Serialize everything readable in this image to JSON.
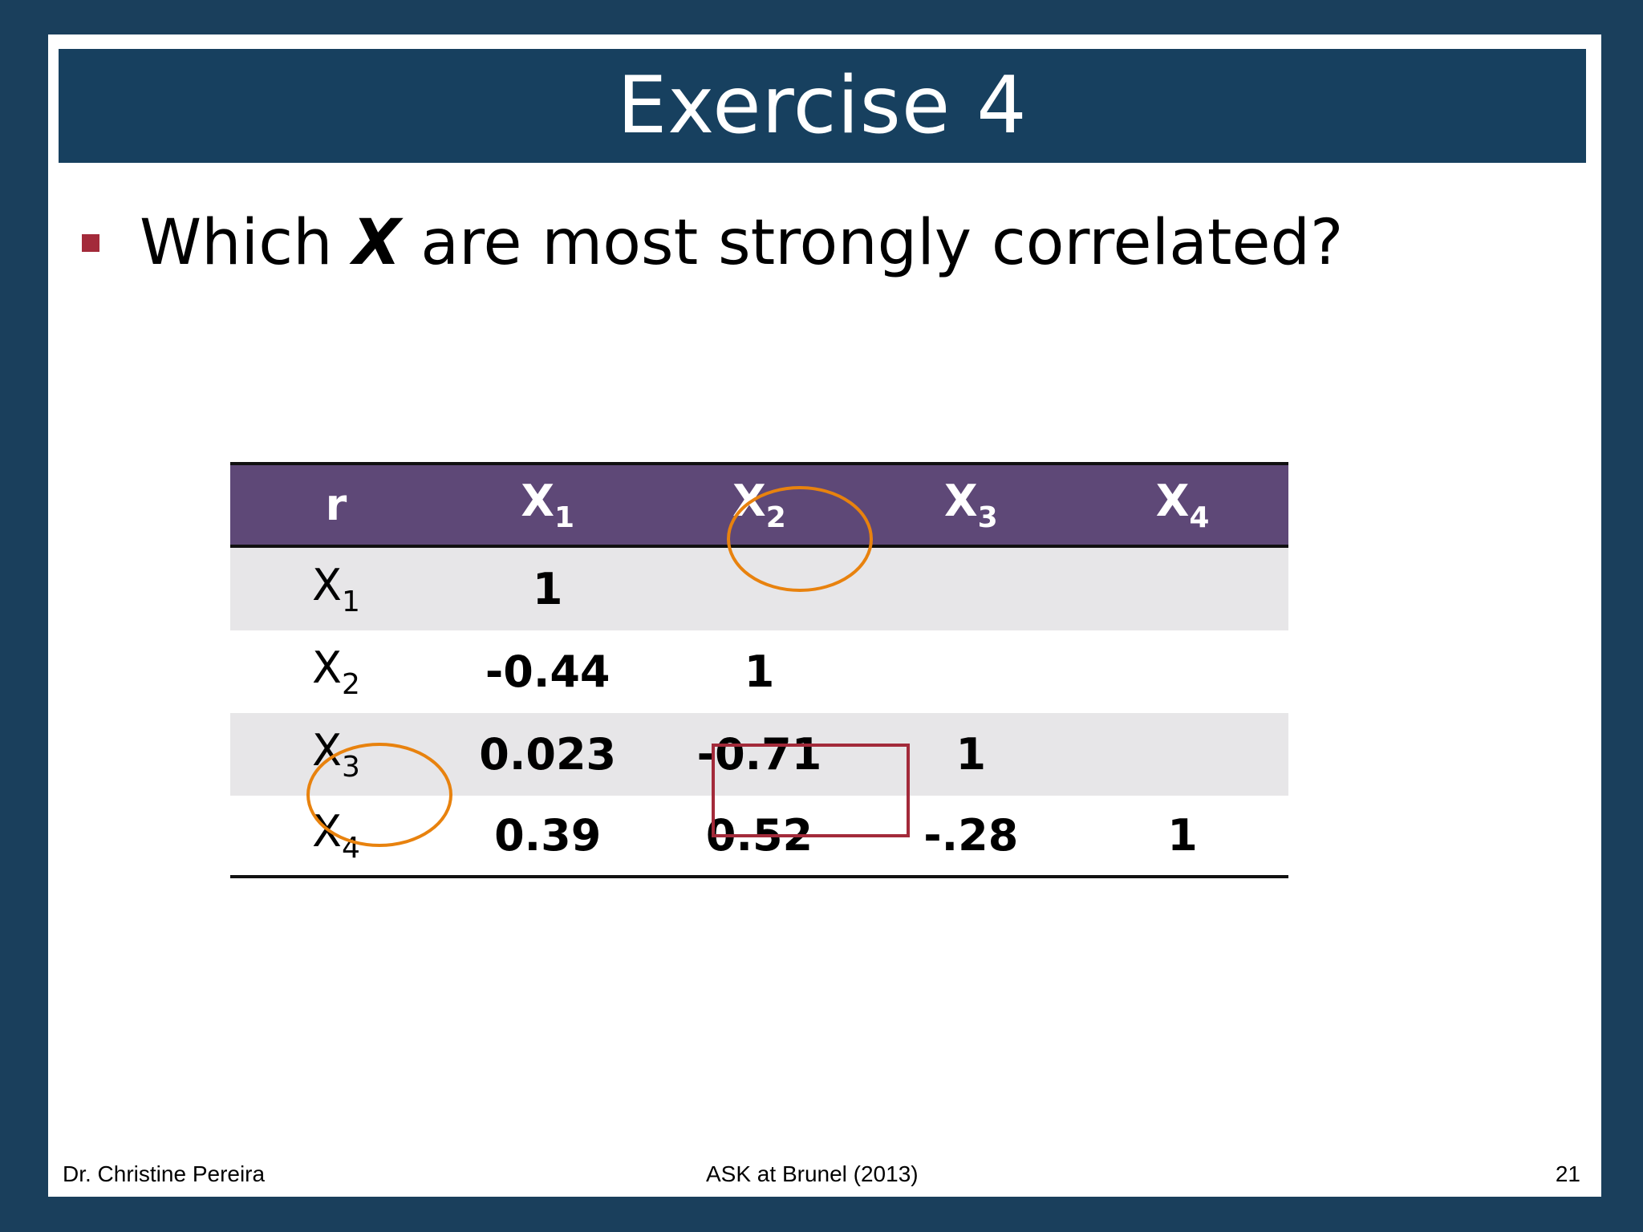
{
  "slide": {
    "title": "Exercise 4",
    "bullet": {
      "before": "Which ",
      "emphasis": "X",
      "after": " are most strongly correlated?"
    }
  },
  "table": {
    "corner": "r",
    "columns": [
      {
        "base": "X",
        "sub": "1"
      },
      {
        "base": "X",
        "sub": "2"
      },
      {
        "base": "X",
        "sub": "3"
      },
      {
        "base": "X",
        "sub": "4"
      }
    ],
    "rows": [
      {
        "label": {
          "base": "X",
          "sub": "1"
        },
        "values": [
          "1",
          "",
          "",
          ""
        ]
      },
      {
        "label": {
          "base": "X",
          "sub": "2"
        },
        "values": [
          "-0.44",
          "1",
          "",
          ""
        ]
      },
      {
        "label": {
          "base": "X",
          "sub": "3"
        },
        "values": [
          "0.023",
          "-0.71",
          "1",
          ""
        ]
      },
      {
        "label": {
          "base": "X",
          "sub": "4"
        },
        "values": [
          "0.39",
          "0.52",
          "-.28",
          "1"
        ]
      }
    ]
  },
  "annotations": {
    "circle_color": "#e8820e",
    "box_color": "#a32a3a"
  },
  "footer": {
    "author": "Dr. Christine Pereira",
    "event": "ASK at Brunel (2013)",
    "page": "21"
  }
}
